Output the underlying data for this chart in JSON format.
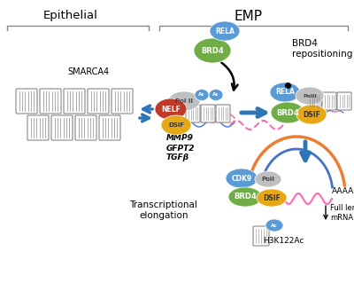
{
  "title_left": "Epithelial",
  "title_right": "EMP",
  "label_smarca4": "SMARCA4",
  "label_brd4_repo": "BRD4\nrepositioning",
  "label_mmp9": "MMP9",
  "label_gfpt2": "GFPT2",
  "label_tgfb": "TGFβ",
  "label_transcriptional": "Transcriptional\nelongation",
  "label_h3k122ac": "H3K122Ac",
  "label_aaaaon": "AAAAn",
  "label_full_length": "Full length\nmRNA",
  "color_rela": "#5b9bd5",
  "color_brd4": "#70ad47",
  "color_nelf": "#c0392b",
  "color_dsif": "#e6a817",
  "color_polii": "#bfbfbf",
  "color_cdk9": "#5b9bd5",
  "color_ac": "#5b9bd5",
  "color_arrow_blue": "#2e75b6",
  "color_orange": "#ed7d31",
  "color_pink": "#ff69b4",
  "bg_color": "#ffffff"
}
